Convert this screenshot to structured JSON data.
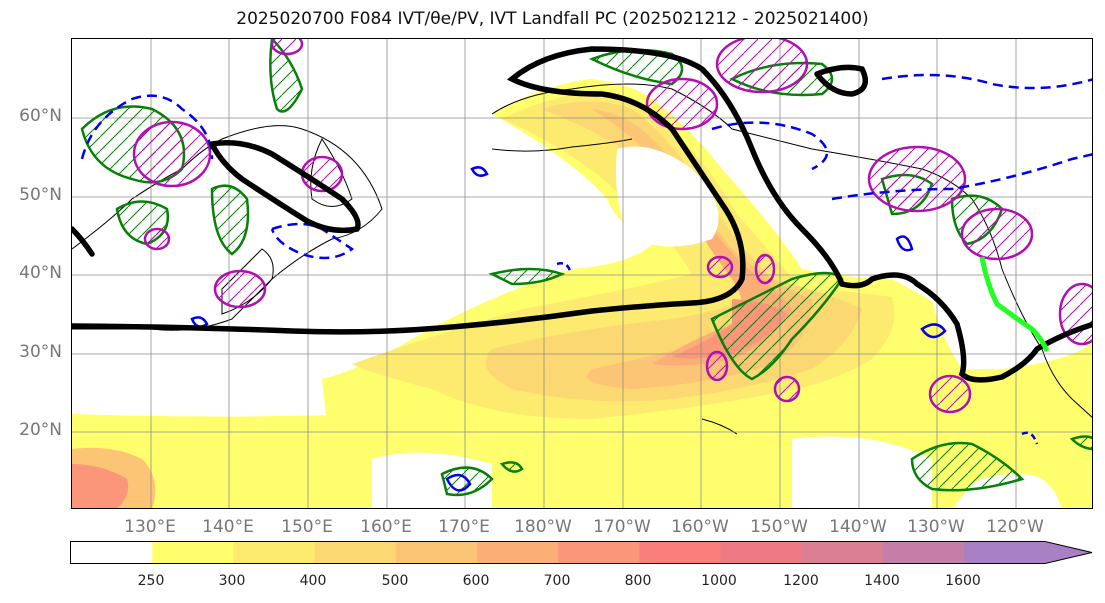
{
  "title": "2025020700 F084 IVT/θe/PV, IVT Landfall PC (2025021212 - 2025021400)",
  "lat_labels": [
    "60°N",
    "50°N",
    "40°N",
    "30°N",
    "20°N"
  ],
  "lon_labels": [
    "130°E",
    "140°E",
    "150°E",
    "160°E",
    "170°E",
    "180°W",
    "170°W",
    "160°W",
    "150°W",
    "140°W",
    "130°W",
    "120°W"
  ],
  "colorbar": {
    "ticks": [
      "250",
      "300",
      "400",
      "500",
      "600",
      "700",
      "800",
      "1000",
      "1200",
      "1400",
      "1600"
    ],
    "colors": [
      "#ffffff",
      "#ffff6e",
      "#fdeb70",
      "#fcd872",
      "#fcc475",
      "#fcae77",
      "#fb967a",
      "#f97e7c",
      "#ee7a85",
      "#db7f95",
      "#c57ea8",
      "#a880c4"
    ]
  },
  "colors": {
    "theta_e": "#000000",
    "pv_positive": "#b20fb2",
    "pv_negative": "#0000ee",
    "green_contour": "#087f08",
    "landfall_pc": "#22ff22"
  }
}
